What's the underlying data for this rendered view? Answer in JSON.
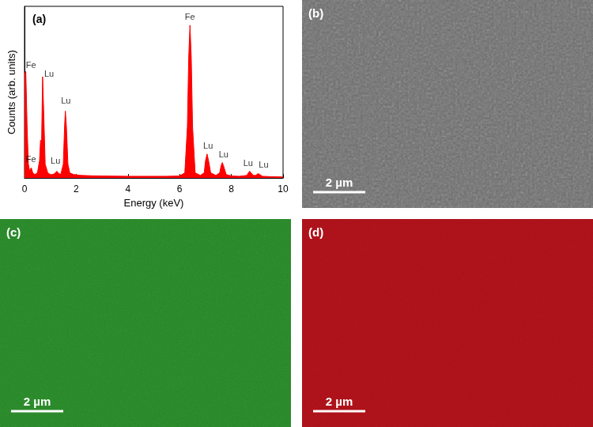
{
  "chart_data": {
    "type": "line",
    "panel_label": "(a)",
    "x_label": "Energy (keV)",
    "y_label": "Counts (arb. units)",
    "x": [
      0.0,
      0.05,
      0.1,
      0.15,
      0.2,
      0.26,
      0.32,
      0.4,
      0.5,
      0.58,
      0.62,
      0.66,
      0.7,
      0.74,
      0.8,
      0.9,
      1.0,
      1.1,
      1.2,
      1.25,
      1.3,
      1.4,
      1.5,
      1.55,
      1.58,
      1.62,
      1.68,
      1.75,
      1.9,
      2.2,
      2.6,
      3.0,
      3.5,
      4.0,
      4.5,
      5.0,
      5.5,
      6.0,
      6.2,
      6.3,
      6.35,
      6.4,
      6.45,
      6.5,
      6.6,
      6.8,
      6.95,
      7.0,
      7.06,
      7.12,
      7.2,
      7.4,
      7.55,
      7.6,
      7.65,
      7.7,
      7.8,
      8.0,
      8.3,
      8.6,
      8.66,
      8.71,
      8.76,
      8.85,
      8.95,
      9.0,
      9.05,
      9.1,
      9.2,
      9.5,
      10.0
    ],
    "values": [
      60,
      62,
      30,
      8,
      4,
      6,
      3,
      2,
      3,
      10,
      22,
      20,
      59,
      40,
      8,
      3,
      2,
      2,
      3,
      4,
      3,
      2,
      8,
      30,
      39,
      30,
      8,
      3,
      2,
      1.5,
      1.3,
      1.2,
      1.1,
      1,
      1,
      1,
      1,
      1.2,
      3,
      30,
      70,
      89,
      70,
      30,
      3,
      1.5,
      3,
      10,
      14,
      10,
      3,
      1.5,
      3,
      7,
      9,
      7,
      2,
      1.2,
      1,
      1.5,
      3,
      4,
      3,
      1.5,
      1.5,
      2.3,
      2.5,
      2,
      1,
      0.8,
      0.6
    ],
    "color": "#ff0000",
    "xlim": [
      0,
      10
    ],
    "xticks": [
      0,
      2,
      4,
      6,
      8,
      10
    ],
    "ylim": [
      0,
      100
    ],
    "yticks": [],
    "tick_labels": "x",
    "annotations": [
      {
        "text": "Fe",
        "x": 0.25,
        "y": 66
      },
      {
        "text": "Fe",
        "x": 0.25,
        "y": 11
      },
      {
        "text": "Lu",
        "x": 0.95,
        "y": 61
      },
      {
        "text": "Lu",
        "x": 1.2,
        "y": 10
      },
      {
        "text": "Lu",
        "x": 1.6,
        "y": 45
      },
      {
        "text": "Fe",
        "x": 6.4,
        "y": 94
      },
      {
        "text": "Lu",
        "x": 7.1,
        "y": 19
      },
      {
        "text": "Lu",
        "x": 7.7,
        "y": 14
      },
      {
        "text": "Lu",
        "x": 8.65,
        "y": 9
      },
      {
        "text": "Lu",
        "x": 9.25,
        "y": 8
      }
    ]
  },
  "images": [
    {
      "panel_label": "(b)",
      "scale_bar": "2 µm",
      "color": "#7a7a7a"
    },
    {
      "panel_label": "(c)",
      "scale_bar": "2 µm",
      "color": "#2f9a2f"
    },
    {
      "panel_label": "(d)",
      "scale_bar": "2 µm",
      "color": "#c8141c"
    }
  ]
}
